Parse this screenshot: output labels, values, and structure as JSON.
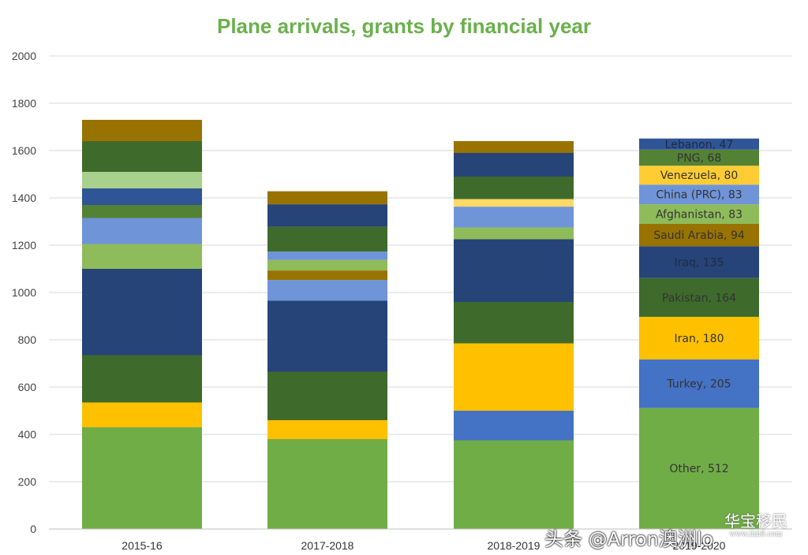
{
  "chart_data": {
    "type": "bar",
    "title": "Plane arrivals, grants by financial year",
    "ylim": [
      0,
      2000
    ],
    "yticks": [
      0,
      200,
      400,
      600,
      800,
      1000,
      1200,
      1400,
      1600,
      1800,
      2000
    ],
    "grid": true,
    "colors": {
      "title": "#6ab04c",
      "Other": "#70ad47",
      "Turkey": "#4472c4",
      "Iran": "#ffc000",
      "Pakistan": "#3e6b2b",
      "Iraq": "#264478",
      "Saudi Arabia": "#997300",
      "Afghanistan": "#8fbc5a",
      "China (PRC)": "#6f94d8",
      "Venezuela": "#ffcd33",
      "PNG": "#548235",
      "Lebanon": "#2f5597",
      "bar1_c": "#a9d18e",
      "bar3_c": "#ffd966",
      "bar4_label_dark": "#1f2a44"
    },
    "bars": [
      {
        "category": "2015-16",
        "segments": [
          {
            "key": "Other",
            "value": 430
          },
          {
            "key": "Iran",
            "value": 105
          },
          {
            "key": "Pakistan",
            "value": 200
          },
          {
            "key": "Iraq",
            "value": 365
          },
          {
            "key": "Afghanistan",
            "value": 105
          },
          {
            "key": "China (PRC)",
            "value": 110
          },
          {
            "key": "PNG",
            "value": 55
          },
          {
            "key": "Lebanon",
            "value": 70
          },
          {
            "key": "bar1_c",
            "value": 70
          },
          {
            "key": "Pakistan",
            "value": 130
          },
          {
            "key": "Saudi Arabia",
            "value": 90
          }
        ]
      },
      {
        "category": "2017-2018",
        "segments": [
          {
            "key": "Other",
            "value": 380
          },
          {
            "key": "Iran",
            "value": 80
          },
          {
            "key": "Pakistan",
            "value": 205
          },
          {
            "key": "Iraq",
            "value": 300
          },
          {
            "key": "China (PRC)",
            "value": 88
          },
          {
            "key": "Saudi Arabia",
            "value": 40
          },
          {
            "key": "Afghanistan",
            "value": 45
          },
          {
            "key": "China (PRC)",
            "value": 35
          },
          {
            "key": "Pakistan",
            "value": 105
          },
          {
            "key": "Iraq",
            "value": 95
          },
          {
            "key": "Saudi Arabia",
            "value": 55
          }
        ]
      },
      {
        "category": "2018-2019",
        "segments": [
          {
            "key": "Other",
            "value": 375
          },
          {
            "key": "Turkey",
            "value": 125
          },
          {
            "key": "Iran",
            "value": 285
          },
          {
            "key": "Pakistan",
            "value": 175
          },
          {
            "key": "Iraq",
            "value": 265
          },
          {
            "key": "Afghanistan",
            "value": 50
          },
          {
            "key": "China (PRC)",
            "value": 88
          },
          {
            "key": "bar3_c",
            "value": 32
          },
          {
            "key": "Pakistan",
            "value": 95
          },
          {
            "key": "Iraq",
            "value": 100
          },
          {
            "key": "Saudi Arabia",
            "value": 50
          }
        ]
      },
      {
        "category": "2019-2020",
        "segments": [
          {
            "key": "Other",
            "value": 512,
            "label": "Other, 512"
          },
          {
            "key": "Turkey",
            "value": 205,
            "label": "Turkey, 205"
          },
          {
            "key": "Iran",
            "value": 180,
            "label": "Iran, 180"
          },
          {
            "key": "Pakistan",
            "value": 164,
            "label": "Pakistan, 164"
          },
          {
            "key": "Iraq",
            "value": 135,
            "label": "Iraq, 135"
          },
          {
            "key": "Saudi Arabia",
            "value": 94,
            "label": "Saudi Arabia, 94"
          },
          {
            "key": "Afghanistan",
            "value": 83,
            "label": "Afghanistan, 83"
          },
          {
            "key": "China (PRC)",
            "value": 83,
            "label": "China (PRC), 83"
          },
          {
            "key": "Venezuela",
            "value": 80,
            "label": "Venezuela, 80"
          },
          {
            "key": "PNG",
            "value": 68,
            "label": "PNG, 68"
          },
          {
            "key": "Lebanon",
            "value": 47,
            "label": "Lebanon, 47"
          }
        ]
      }
    ]
  },
  "watermark": {
    "text": "头条 @Arron澳洲lo",
    "logo_text": "华宝移民",
    "logo_sub": "www.ihb8.com"
  }
}
